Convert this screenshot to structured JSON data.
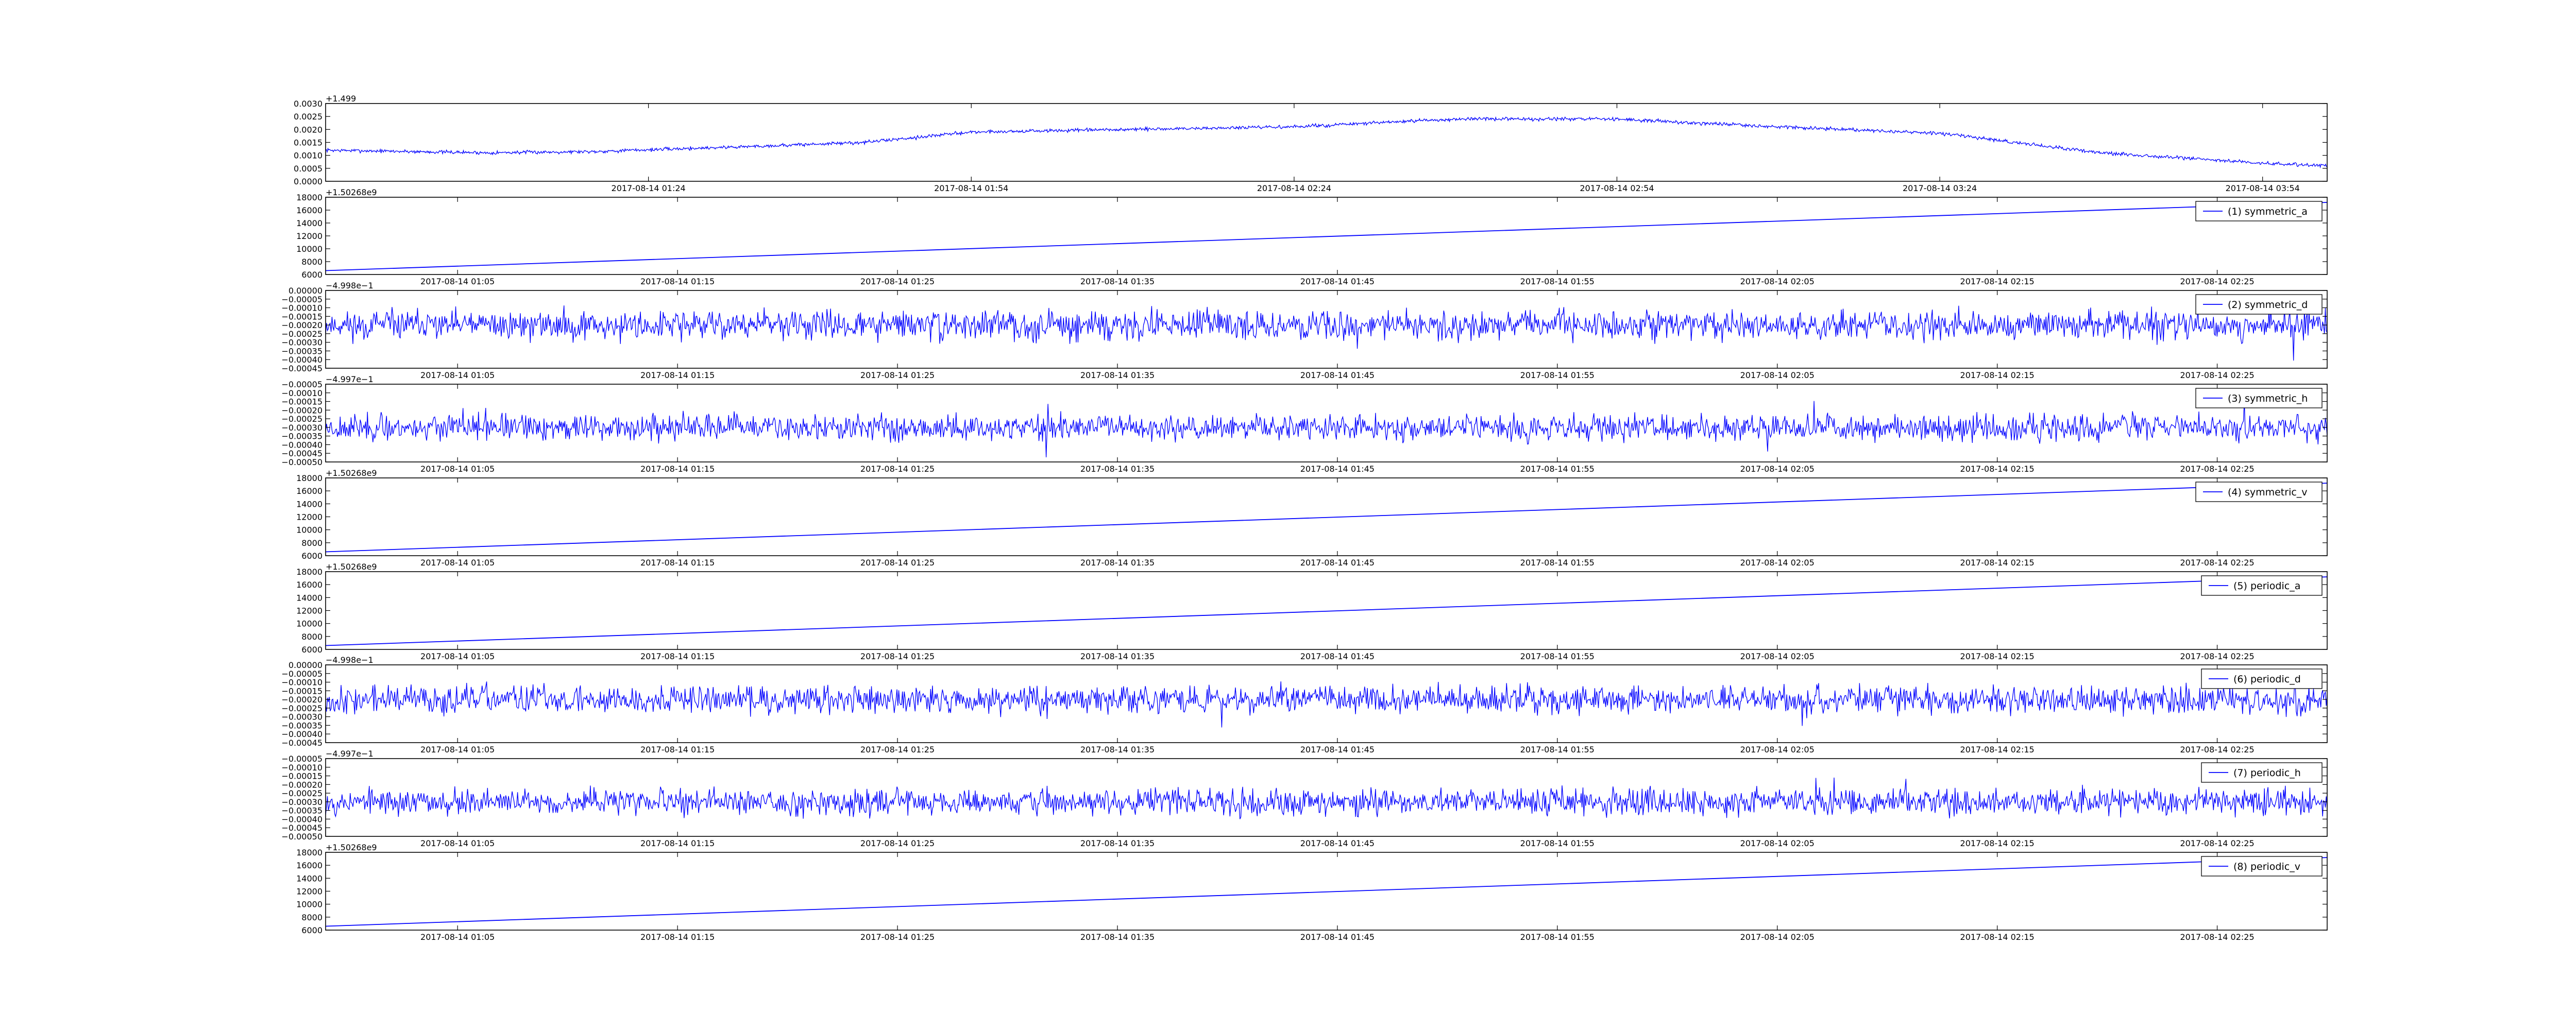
{
  "chart_data": [
    {
      "type": "line",
      "legend": "",
      "offset_text": "+1.499",
      "y_ticks": [
        "0.0000",
        "0.0005",
        "0.0010",
        "0.0015",
        "0.0020",
        "0.0025",
        "0.0030"
      ],
      "ylim": [
        0,
        0.003
      ],
      "x_ticks": [
        "2017-08-14 01:24",
        "2017-08-14 01:54",
        "2017-08-14 02:24",
        "2017-08-14 02:54",
        "2017-08-14 03:24",
        "2017-08-14 03:54"
      ],
      "xlim": [
        "2017-08-14 00:54",
        "2017-08-14 04:00"
      ],
      "trend": {
        "x": [
          "00:54",
          "01:09",
          "01:19",
          "01:34",
          "01:44",
          "01:54",
          "02:09",
          "02:24",
          "02:39",
          "02:54",
          "03:09",
          "03:24",
          "03:39",
          "03:54",
          "04:00"
        ],
        "y": [
          0.0012,
          0.0011,
          0.00115,
          0.00135,
          0.0015,
          0.0019,
          0.002,
          0.0021,
          0.0024,
          0.0024,
          0.0021,
          0.00185,
          0.0011,
          0.0007,
          0.0006
        ]
      },
      "noise_amplitude": 0.0001
    },
    {
      "type": "line",
      "legend": "(1) symmetric_a",
      "offset_text": "+1.50268e9",
      "y_ticks": [
        "6000",
        "8000",
        "10000",
        "12000",
        "14000",
        "16000",
        "18000"
      ],
      "ylim": [
        6000,
        18000
      ],
      "x_ticks": [
        "2017-08-14 01:05",
        "2017-08-14 01:15",
        "2017-08-14 01:25",
        "2017-08-14 01:35",
        "2017-08-14 01:45",
        "2017-08-14 01:55",
        "2017-08-14 02:05",
        "2017-08-14 02:15",
        "2017-08-14 02:25"
      ],
      "xlim": [
        "2017-08-14 00:59",
        "2017-08-14 02:30"
      ],
      "line": {
        "x": [
          "00:59",
          "02:30"
        ],
        "y": [
          6600,
          17200
        ]
      }
    },
    {
      "type": "line",
      "legend": "(2) symmetric_d",
      "offset_text": "−4.998e−1",
      "y_ticks": [
        "−0.00045",
        "−0.00040",
        "−0.00035",
        "−0.00030",
        "−0.00025",
        "−0.00020",
        "−0.00015",
        "−0.00010",
        "−0.00005",
        "0.00000"
      ],
      "ylim": [
        -0.00045,
        0
      ],
      "x_ticks": [
        "2017-08-14 01:05",
        "2017-08-14 01:15",
        "2017-08-14 01:25",
        "2017-08-14 01:35",
        "2017-08-14 01:45",
        "2017-08-14 01:55",
        "2017-08-14 02:05",
        "2017-08-14 02:15",
        "2017-08-14 02:25"
      ],
      "xlim": [
        "2017-08-14 00:59",
        "2017-08-14 02:30"
      ],
      "noise": {
        "mean": -0.0002,
        "amplitude": 0.00012,
        "seed": 11
      }
    },
    {
      "type": "line",
      "legend": "(3) symmetric_h",
      "offset_text": "−4.997e−1",
      "y_ticks": [
        "−0.00050",
        "−0.00045",
        "−0.00040",
        "−0.00035",
        "−0.00030",
        "−0.00025",
        "−0.00020",
        "−0.00015",
        "−0.00010",
        "−0.00005"
      ],
      "ylim": [
        -0.0005,
        -5e-05
      ],
      "x_ticks": [
        "2017-08-14 01:05",
        "2017-08-14 01:15",
        "2017-08-14 01:25",
        "2017-08-14 01:35",
        "2017-08-14 01:45",
        "2017-08-14 01:55",
        "2017-08-14 02:05",
        "2017-08-14 02:15",
        "2017-08-14 02:25"
      ],
      "xlim": [
        "2017-08-14 00:59",
        "2017-08-14 02:30"
      ],
      "noise": {
        "mean": -0.0003,
        "amplitude": 0.00011,
        "seed": 23
      }
    },
    {
      "type": "line",
      "legend": "(4) symmetric_v",
      "offset_text": "+1.50268e9",
      "y_ticks": [
        "6000",
        "8000",
        "10000",
        "12000",
        "14000",
        "16000",
        "18000"
      ],
      "ylim": [
        6000,
        18000
      ],
      "x_ticks": [
        "2017-08-14 01:05",
        "2017-08-14 01:15",
        "2017-08-14 01:25",
        "2017-08-14 01:35",
        "2017-08-14 01:45",
        "2017-08-14 01:55",
        "2017-08-14 02:05",
        "2017-08-14 02:15",
        "2017-08-14 02:25"
      ],
      "xlim": [
        "2017-08-14 00:59",
        "2017-08-14 02:30"
      ],
      "line": {
        "x": [
          "00:59",
          "02:30"
        ],
        "y": [
          6600,
          17200
        ]
      }
    },
    {
      "type": "line",
      "legend": "(5) periodic_a",
      "offset_text": "+1.50268e9",
      "y_ticks": [
        "6000",
        "8000",
        "10000",
        "12000",
        "14000",
        "16000",
        "18000"
      ],
      "ylim": [
        6000,
        18000
      ],
      "x_ticks": [
        "2017-08-14 01:05",
        "2017-08-14 01:15",
        "2017-08-14 01:25",
        "2017-08-14 01:35",
        "2017-08-14 01:45",
        "2017-08-14 01:55",
        "2017-08-14 02:05",
        "2017-08-14 02:15",
        "2017-08-14 02:25"
      ],
      "xlim": [
        "2017-08-14 00:59",
        "2017-08-14 02:30"
      ],
      "line": {
        "x": [
          "00:59",
          "02:30"
        ],
        "y": [
          6600,
          17200
        ]
      }
    },
    {
      "type": "line",
      "legend": "(6) periodic_d",
      "offset_text": "−4.998e−1",
      "y_ticks": [
        "−0.00045",
        "−0.00040",
        "−0.00035",
        "−0.00030",
        "−0.00025",
        "−0.00020",
        "−0.00015",
        "−0.00010",
        "−0.00005",
        "0.00000"
      ],
      "ylim": [
        -0.00045,
        0
      ],
      "x_ticks": [
        "2017-08-14 01:05",
        "2017-08-14 01:15",
        "2017-08-14 01:25",
        "2017-08-14 01:35",
        "2017-08-14 01:45",
        "2017-08-14 01:55",
        "2017-08-14 02:05",
        "2017-08-14 02:15",
        "2017-08-14 02:25"
      ],
      "xlim": [
        "2017-08-14 00:59",
        "2017-08-14 02:30"
      ],
      "noise": {
        "mean": -0.0002,
        "amplitude": 0.00012,
        "seed": 37
      }
    },
    {
      "type": "line",
      "legend": "(7) periodic_h",
      "offset_text": "−4.997e−1",
      "y_ticks": [
        "−0.00050",
        "−0.00045",
        "−0.00040",
        "−0.00035",
        "−0.00030",
        "−0.00025",
        "−0.00020",
        "−0.00015",
        "−0.00010",
        "−0.00005"
      ],
      "ylim": [
        -0.0005,
        -5e-05
      ],
      "x_ticks": [
        "2017-08-14 01:05",
        "2017-08-14 01:15",
        "2017-08-14 01:25",
        "2017-08-14 01:35",
        "2017-08-14 01:45",
        "2017-08-14 01:55",
        "2017-08-14 02:05",
        "2017-08-14 02:15",
        "2017-08-14 02:25"
      ],
      "xlim": [
        "2017-08-14 00:59",
        "2017-08-14 02:30"
      ],
      "noise": {
        "mean": -0.0003,
        "amplitude": 0.00011,
        "seed": 53
      }
    },
    {
      "type": "line",
      "legend": "(8) periodic_v",
      "offset_text": "+1.50268e9",
      "y_ticks": [
        "6000",
        "8000",
        "10000",
        "12000",
        "14000",
        "16000",
        "18000"
      ],
      "ylim": [
        6000,
        18000
      ],
      "x_ticks": [
        "2017-08-14 01:05",
        "2017-08-14 01:15",
        "2017-08-14 01:25",
        "2017-08-14 01:35",
        "2017-08-14 01:45",
        "2017-08-14 01:55",
        "2017-08-14 02:05",
        "2017-08-14 02:15",
        "2017-08-14 02:25"
      ],
      "xlim": [
        "2017-08-14 00:59",
        "2017-08-14 02:30"
      ],
      "line": {
        "x": [
          "00:59",
          "02:30"
        ],
        "y": [
          6600,
          17200
        ]
      }
    }
  ],
  "colors": {
    "line": "#0000ff",
    "axes": "#000000",
    "background": "#ffffff"
  }
}
